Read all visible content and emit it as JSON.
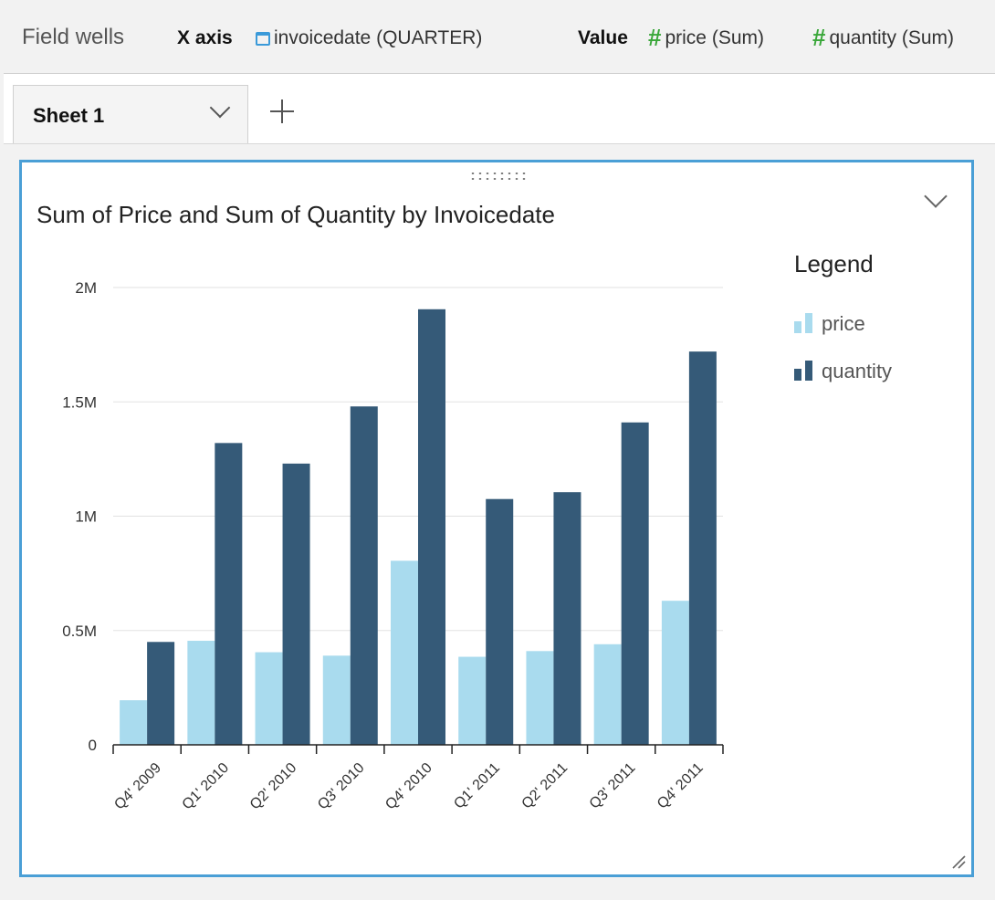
{
  "field_wells": {
    "title": "Field wells",
    "x_axis_label": "X axis",
    "x_axis_field": "invoicedate (QUARTER)",
    "value_label": "Value",
    "value_fields": [
      "price (Sum)",
      "quantity (Sum)"
    ]
  },
  "sheet_tab": {
    "label": "Sheet 1"
  },
  "chart_data": {
    "type": "bar",
    "title": "Sum of Price and Sum of Quantity by Invoicedate",
    "xlabel": "",
    "ylabel": "",
    "categories": [
      "Q4' 2009",
      "Q1' 2010",
      "Q2' 2010",
      "Q3' 2010",
      "Q4' 2010",
      "Q1' 2011",
      "Q2' 2011",
      "Q3' 2011",
      "Q4' 2011"
    ],
    "series": [
      {
        "name": "price",
        "color": "#a9dbee",
        "values": [
          195000,
          455000,
          405000,
          390000,
          805000,
          385000,
          410000,
          440000,
          630000
        ]
      },
      {
        "name": "quantity",
        "color": "#355a78",
        "values": [
          450000,
          1320000,
          1230000,
          1480000,
          1905000,
          1075000,
          1105000,
          1410000,
          1720000
        ]
      }
    ],
    "ylim": [
      0,
      2000000
    ],
    "yticks": [
      0,
      500000,
      1000000,
      1500000,
      2000000
    ],
    "ytick_labels": [
      "0",
      "0.5M",
      "1M",
      "1.5M",
      "2M"
    ],
    "grid": true,
    "legend": {
      "title": "Legend",
      "position": "right"
    }
  },
  "colors": {
    "accent": "#4a9fd6",
    "field_icon_date": "#3b9ad9",
    "field_icon_measure": "#3aa73a"
  }
}
